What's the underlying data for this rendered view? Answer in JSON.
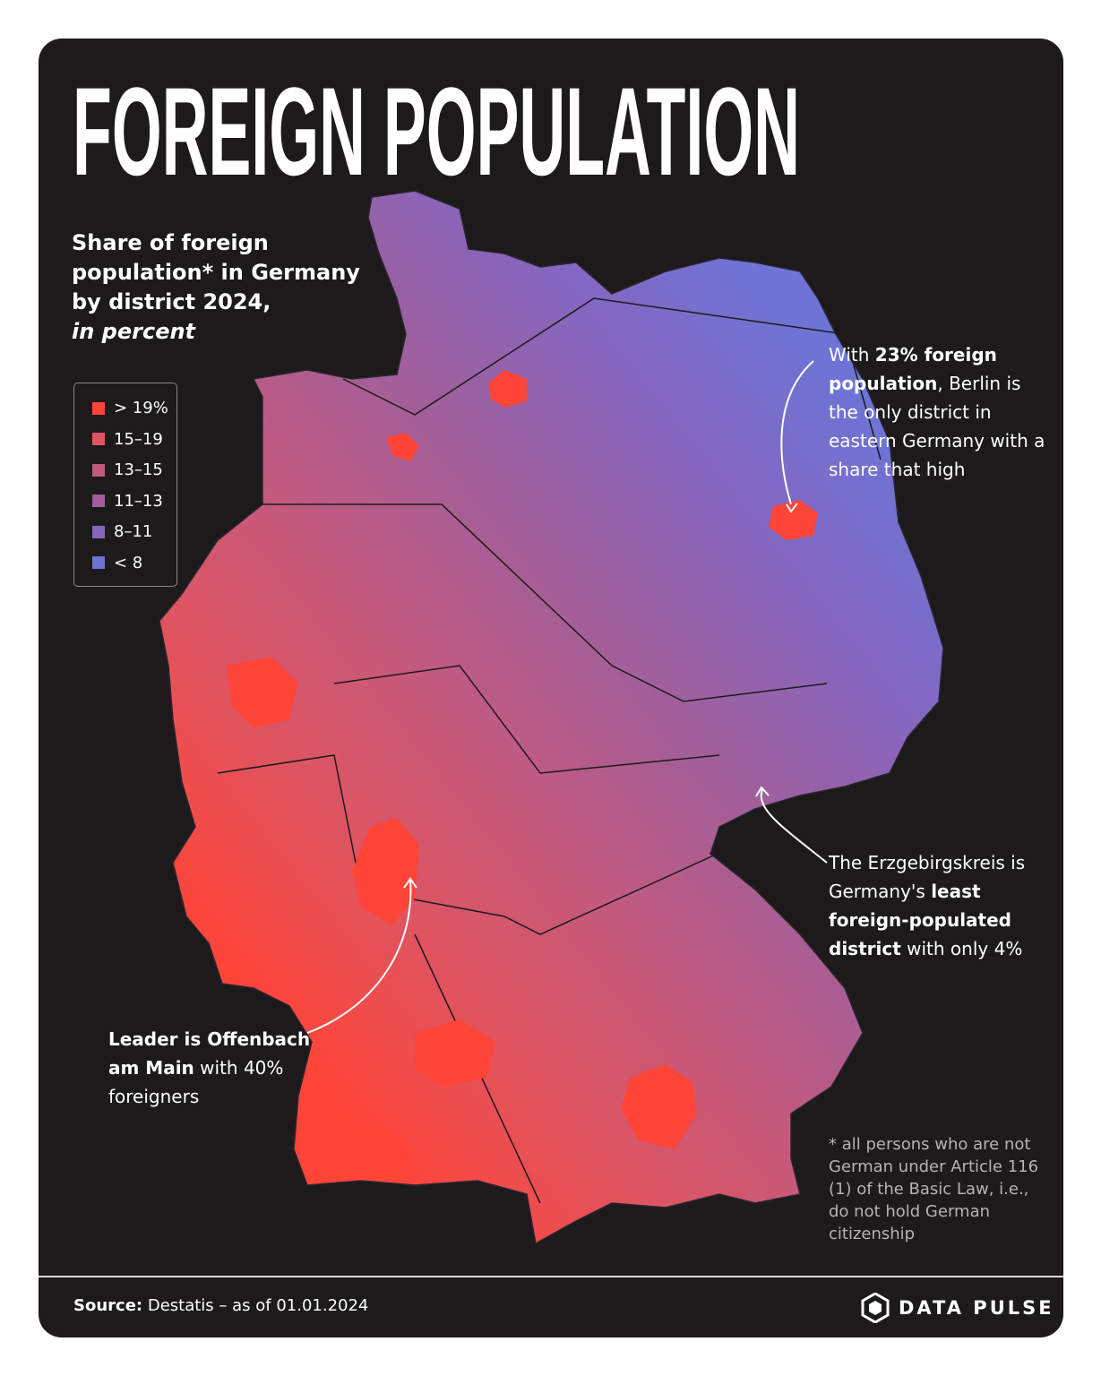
{
  "title": "FOREIGN POPULATION",
  "subtitle": {
    "lines": [
      "Share of foreign",
      "population* in Germany",
      "by district 2024,"
    ],
    "emphasis": "in percent"
  },
  "legend": {
    "items": [
      {
        "label": "> 19%",
        "color": "#ff4438"
      },
      {
        "label": "15–19",
        "color": "#e0545f"
      },
      {
        "label": "13–15",
        "color": "#c25a7e"
      },
      {
        "label": "11–13",
        "color": "#a05f9a"
      },
      {
        "label": "8–11",
        "color": "#8566bf"
      },
      {
        "label": "< 8",
        "color": "#6d74d6"
      }
    ]
  },
  "annotations": [
    {
      "parts": [
        {
          "text": "With ",
          "bold": false
        },
        {
          "text": "23% foreign population",
          "bold": true
        },
        {
          "text": ", Berlin is the only district in eastern Germany with a share that high",
          "bold": false
        }
      ]
    },
    {
      "parts": [
        {
          "text": "The Erzgebirgskreis is Germany's ",
          "bold": false
        },
        {
          "text": "least foreign-populated district",
          "bold": true
        },
        {
          "text": " with only 4%",
          "bold": false
        }
      ]
    },
    {
      "parts": [
        {
          "text": "Leader is Offenbach am Main",
          "bold": true
        },
        {
          "text": " with 40% foreigners",
          "bold": false
        }
      ]
    }
  ],
  "footnote": "* all persons who are not German under Article 116 (1) of the Basic Law, i.e., do not hold German citizenship",
  "source": {
    "label": "Source:",
    "text": "Destatis – as of 01.01.2024"
  },
  "brand": "DATA PULSE"
}
